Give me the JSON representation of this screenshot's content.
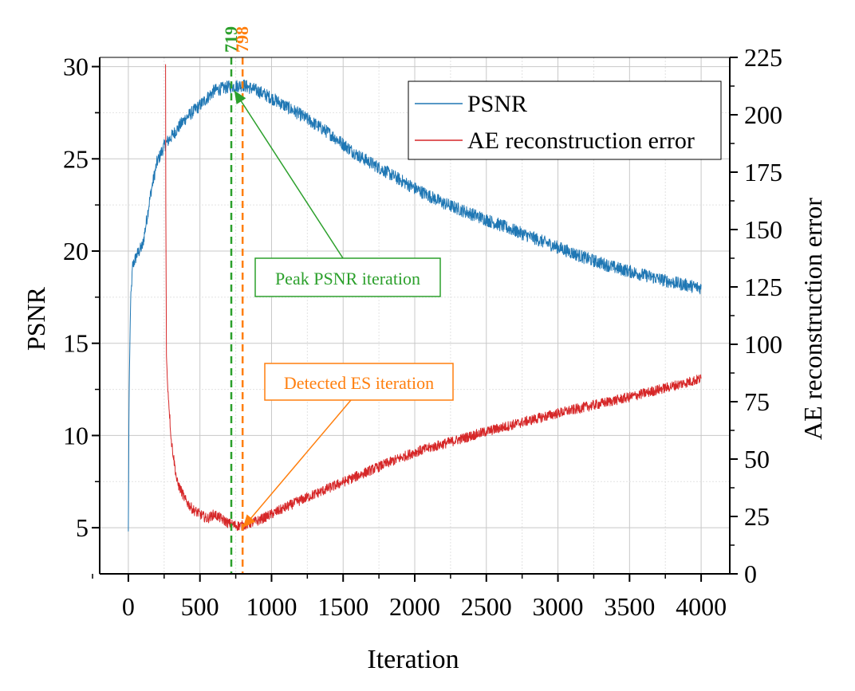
{
  "chart_data": {
    "type": "line",
    "xlabel": "Iteration",
    "ylabel_left": "PSNR",
    "ylabel_right": "AE reconstruction error",
    "xlim": [
      -200,
      4200
    ],
    "ylim_left": [
      2.5,
      30.5
    ],
    "ylim_right": [
      0,
      225
    ],
    "x_ticks": [
      0,
      500,
      1000,
      1500,
      2000,
      2500,
      3000,
      3500,
      4000
    ],
    "y_left_ticks": [
      5,
      10,
      15,
      20,
      25,
      30
    ],
    "y_right_ticks": [
      0,
      25,
      50,
      75,
      100,
      125,
      150,
      175,
      200,
      225
    ],
    "grid": true,
    "legend_position": "top-right",
    "legend": [
      "PSNR",
      "AE reconstruction error"
    ],
    "series": [
      {
        "name": "PSNR",
        "axis": "left",
        "color": "#1f77b4",
        "points": [
          [
            0,
            4.8
          ],
          [
            5,
            12
          ],
          [
            15,
            17
          ],
          [
            30,
            19.2
          ],
          [
            60,
            19.8
          ],
          [
            100,
            20.3
          ],
          [
            130,
            21.8
          ],
          [
            160,
            23.3
          ],
          [
            200,
            24.8
          ],
          [
            250,
            25.7
          ],
          [
            300,
            26.2
          ],
          [
            400,
            27.2
          ],
          [
            500,
            27.9
          ],
          [
            600,
            28.7
          ],
          [
            700,
            28.9
          ],
          [
            800,
            29.0
          ],
          [
            900,
            28.7
          ],
          [
            1000,
            28.3
          ],
          [
            1200,
            27.4
          ],
          [
            1400,
            26.4
          ],
          [
            1600,
            25.2
          ],
          [
            1800,
            24.3
          ],
          [
            2000,
            23.4
          ],
          [
            2200,
            22.6
          ],
          [
            2400,
            22.0
          ],
          [
            2600,
            21.4
          ],
          [
            2800,
            20.8
          ],
          [
            3000,
            20.2
          ],
          [
            3200,
            19.6
          ],
          [
            3400,
            19.1
          ],
          [
            3600,
            18.7
          ],
          [
            3800,
            18.3
          ],
          [
            4000,
            18.0
          ]
        ]
      },
      {
        "name": "AE reconstruction error",
        "axis": "right",
        "color": "#d62728",
        "points": [
          [
            260,
            222
          ],
          [
            262,
            160
          ],
          [
            266,
            95
          ],
          [
            275,
            82
          ],
          [
            300,
            58
          ],
          [
            340,
            40
          ],
          [
            400,
            32
          ],
          [
            450,
            28
          ],
          [
            500,
            26
          ],
          [
            550,
            24
          ],
          [
            600,
            26
          ],
          [
            650,
            24
          ],
          [
            700,
            22
          ],
          [
            750,
            21
          ],
          [
            798,
            21
          ],
          [
            900,
            23
          ],
          [
            1000,
            26
          ],
          [
            1200,
            32
          ],
          [
            1500,
            40
          ],
          [
            1800,
            48
          ],
          [
            2000,
            53
          ],
          [
            2500,
            62
          ],
          [
            3000,
            70
          ],
          [
            3500,
            77
          ],
          [
            4000,
            85
          ]
        ]
      }
    ],
    "vlines": [
      {
        "label": "719",
        "x": 719,
        "color": "#2ca02c"
      },
      {
        "label": "798",
        "x": 798,
        "color": "#ff7f0e"
      }
    ],
    "annotations": [
      {
        "text": "Peak PSNR iteration",
        "color": "#2ca02c",
        "target_x": 740,
        "target_y_left": 28.7
      },
      {
        "text": "Detected ES iteration",
        "color": "#ff7f0e",
        "target_x": 800,
        "target_y_left": 5.0
      }
    ]
  }
}
